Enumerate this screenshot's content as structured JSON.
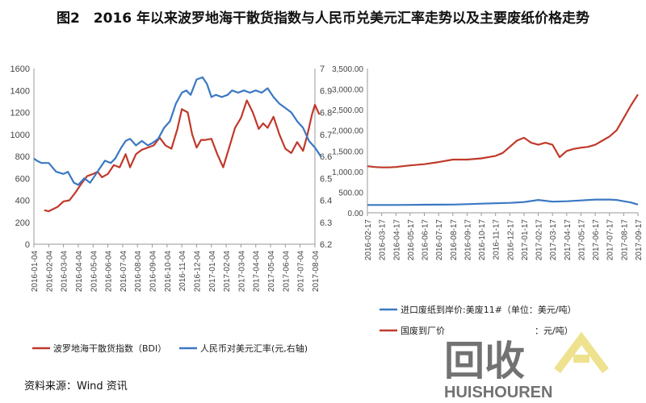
{
  "title": "图2　2016 年以来波罗地海干散货指数与人民币兑美元汇率走势以及主要废纸价格走势",
  "source": "资料来源：Wind 资讯",
  "watermark": {
    "text_main": "回收",
    "text_sub": "HUISHOUREN",
    "color": "#e8d86a"
  },
  "colors": {
    "red": "#c0392b",
    "blue": "#3a78c3"
  },
  "chart_data": [
    {
      "type": "line",
      "dual_axis": true,
      "yleft": {
        "ticks": [
          "0",
          "200",
          "400",
          "600",
          "800",
          "1000",
          "1200",
          "1400",
          "1600"
        ],
        "lim": [
          0,
          1600
        ]
      },
      "yright": {
        "ticks": [
          "6.2",
          "6.3",
          "6.4",
          "6.5",
          "6.6",
          "6.7",
          "6.8",
          "6.9",
          "7"
        ],
        "lim": [
          6.2,
          7.0
        ]
      },
      "x_ticks": [
        "2016-01-04",
        "2016-02-04",
        "2016-03-04",
        "2016-04-04",
        "2016-05-04",
        "2016-06-04",
        "2016-07-04",
        "2016-08-04",
        "2016-09-04",
        "2016-10-04",
        "2016-11-04",
        "2016-12-04",
        "2017-01-04",
        "2017-02-04",
        "2017-03-04",
        "2017-04-04",
        "2017-05-04",
        "2017-06-04",
        "2017-07-04",
        "2017-08-04"
      ],
      "series": [
        {
          "name": "波罗地海干散货指数（BDI）",
          "axis": "left",
          "color": "#c0392b",
          "x": [
            0.7,
            1,
            1.3,
            1.6,
            2,
            2.4,
            2.8,
            3.2,
            3.6,
            4,
            4.3,
            4.6,
            5,
            5.4,
            5.8,
            6.2,
            6.5,
            6.9,
            7.3,
            7.7,
            8.1,
            8.5,
            8.9,
            9.3,
            9.7,
            10,
            10.4,
            10.7,
            11,
            11.3,
            11.6,
            12,
            12.4,
            12.8,
            13.2,
            13.6,
            14,
            14.4,
            14.8,
            15.2,
            15.5,
            15.8,
            16.2,
            16.6,
            17,
            17.4,
            17.8,
            18.2,
            18.5,
            18.8,
            19,
            19.3
          ],
          "values": [
            310,
            300,
            320,
            340,
            390,
            400,
            470,
            550,
            620,
            640,
            660,
            610,
            640,
            720,
            700,
            820,
            700,
            820,
            860,
            880,
            900,
            970,
            900,
            870,
            1050,
            1230,
            1200,
            1000,
            880,
            950,
            950,
            960,
            820,
            700,
            880,
            1060,
            1150,
            1310,
            1200,
            1050,
            1100,
            1060,
            1160,
            1000,
            870,
            830,
            930,
            850,
            1000,
            1180,
            1270,
            1180
          ]
        },
        {
          "name": "人民币对美元汇率(元,右轴)",
          "axis": "right",
          "color": "#3a78c3",
          "x": [
            0,
            0.2,
            0.5,
            1,
            1.5,
            2,
            2.3,
            2.7,
            3,
            3.4,
            3.8,
            4.2,
            4.5,
            4.8,
            5.2,
            5.5,
            5.9,
            6.2,
            6.5,
            6.9,
            7.3,
            7.7,
            8,
            8.4,
            8.8,
            9.2,
            9.6,
            10,
            10.3,
            10.6,
            11,
            11.4,
            11.7,
            12,
            12.3,
            12.7,
            13.1,
            13.4,
            13.8,
            14.2,
            14.6,
            15,
            15.4,
            15.8,
            16.2,
            16.6,
            17,
            17.4,
            17.8,
            18.2,
            18.6,
            19,
            19.4
          ],
          "values": [
            6.59,
            6.58,
            6.57,
            6.57,
            6.53,
            6.52,
            6.53,
            6.48,
            6.47,
            6.5,
            6.48,
            6.52,
            6.55,
            6.58,
            6.57,
            6.59,
            6.64,
            6.67,
            6.68,
            6.65,
            6.67,
            6.65,
            6.66,
            6.68,
            6.73,
            6.76,
            6.84,
            6.89,
            6.9,
            6.88,
            6.95,
            6.96,
            6.93,
            6.87,
            6.88,
            6.87,
            6.88,
            6.9,
            6.89,
            6.9,
            6.89,
            6.9,
            6.89,
            6.91,
            6.87,
            6.84,
            6.82,
            6.8,
            6.76,
            6.73,
            6.67,
            6.64,
            6.6
          ]
        }
      ]
    },
    {
      "type": "line",
      "yleft": {
        "ticks": [
          "0.00",
          "500.00",
          "1,000.00",
          "1,500.00",
          "2,000.00",
          "2,500.00",
          "3,000.00",
          "3,500.00"
        ],
        "lim": [
          0,
          3500
        ]
      },
      "x_ticks": [
        "2016-02-17",
        "2016-03-17",
        "2016-04-17",
        "2016-05-17",
        "2016-06-17",
        "2016-07-17",
        "2016-08-17",
        "2016-09-17",
        "2016-10-17",
        "2016-11-17",
        "2016-12-17",
        "2017-01-17",
        "2017-02-17",
        "2017-03-17",
        "2017-04-17",
        "2017-05-17",
        "2017-06-17",
        "2017-07-17",
        "2017-08-17",
        "2017-09-17"
      ],
      "series": [
        {
          "name": "进口废纸到岸价:美废11#（单位：美元/吨）",
          "color": "#3a78c3",
          "x": [
            0,
            1,
            2,
            3,
            4,
            5,
            6,
            7,
            8,
            9,
            10,
            11,
            12,
            13,
            14,
            15,
            16,
            17,
            17.5,
            18,
            18.5,
            19
          ],
          "values": [
            190,
            190,
            190,
            192,
            195,
            198,
            200,
            210,
            220,
            230,
            240,
            260,
            310,
            270,
            280,
            300,
            320,
            320,
            310,
            280,
            250,
            200
          ]
        },
        {
          "name": "国废到厂价",
          "label_suffix": "：元/吨）",
          "color": "#c0392b",
          "x": [
            0,
            0.5,
            1,
            1.5,
            2,
            3,
            4,
            5,
            6,
            7,
            8,
            9,
            9.5,
            10,
            10.5,
            11,
            11.5,
            12,
            12.5,
            13,
            13.5,
            14,
            14.5,
            15,
            15.5,
            16,
            16.5,
            17,
            17.5,
            18,
            18.5,
            19
          ],
          "values": [
            1130,
            1110,
            1100,
            1100,
            1110,
            1150,
            1180,
            1230,
            1290,
            1290,
            1320,
            1380,
            1450,
            1600,
            1750,
            1820,
            1700,
            1650,
            1700,
            1650,
            1350,
            1500,
            1550,
            1580,
            1600,
            1650,
            1750,
            1850,
            2000,
            2300,
            2600,
            2870
          ]
        }
      ]
    }
  ]
}
